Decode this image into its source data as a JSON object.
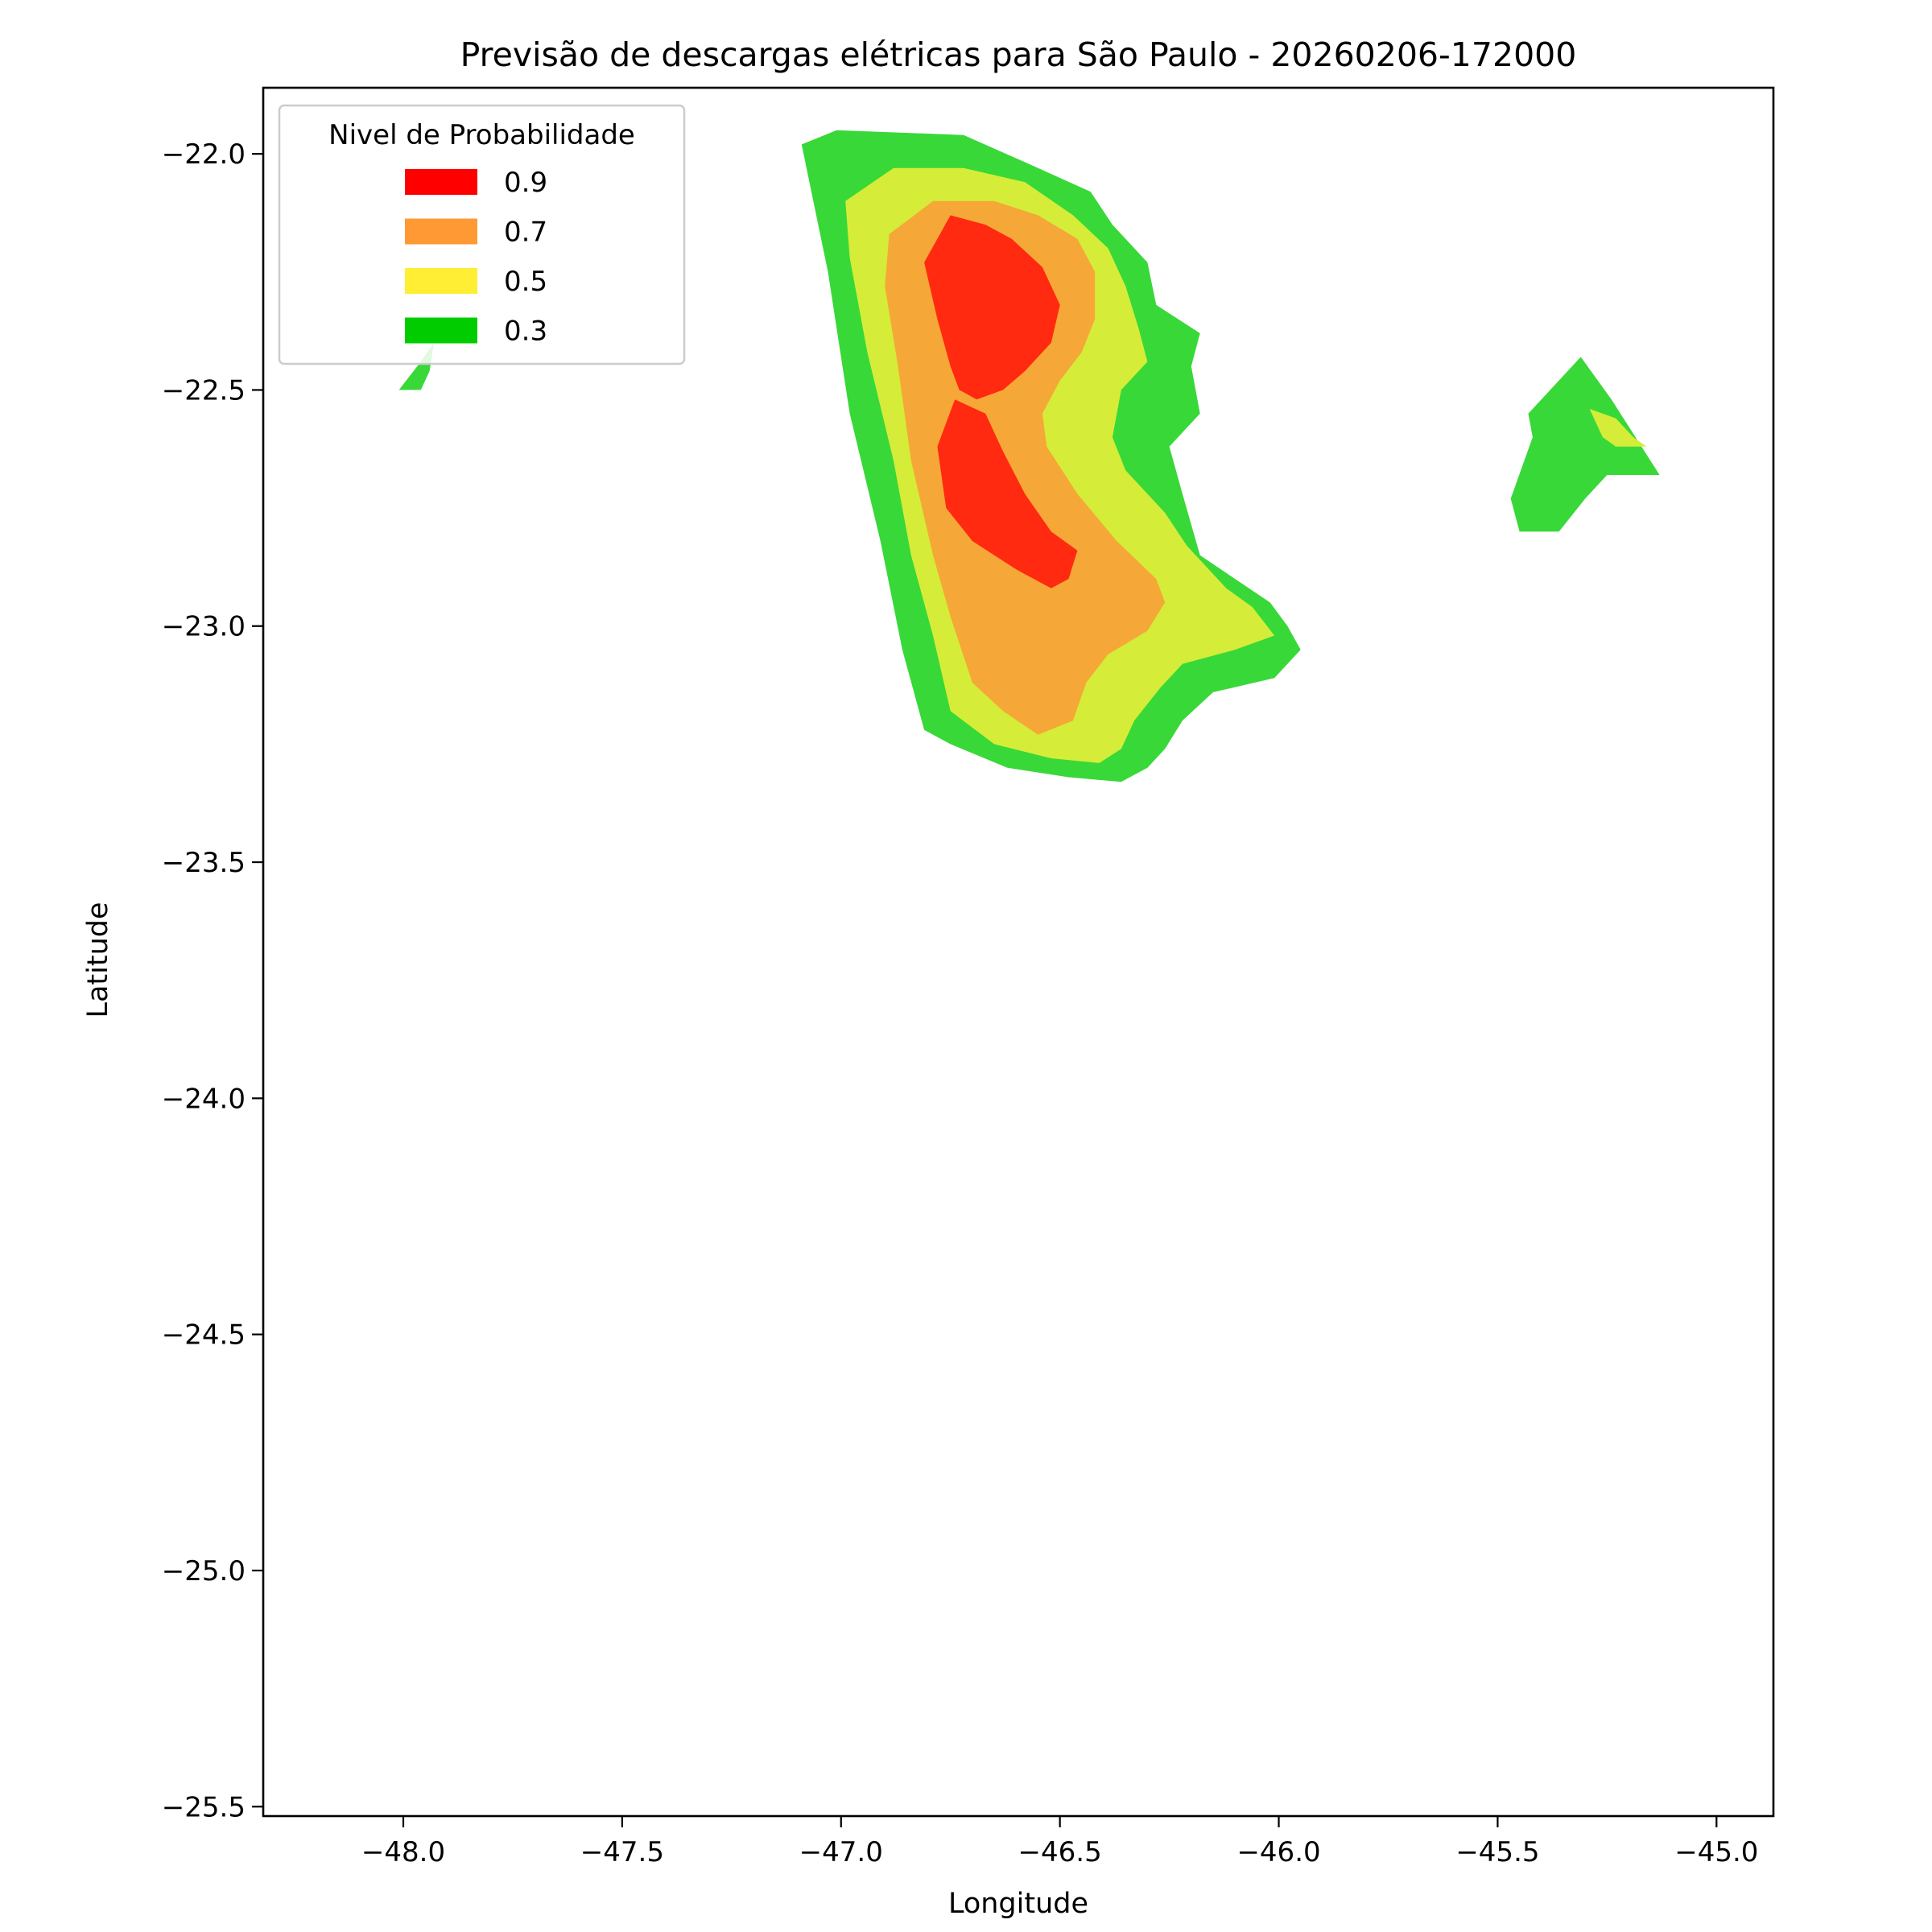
{
  "chart_data": {
    "type": "contour",
    "title": "Previsão de descargas elétricas para São Paulo - 20260206-172000",
    "xlabel": "Longitude",
    "ylabel": "Latitude",
    "xlim": [
      -48.32,
      -44.87
    ],
    "ylim": [
      -25.52,
      -21.86
    ],
    "xticks": [
      -48.0,
      -47.5,
      -47.0,
      -46.5,
      -46.0,
      -45.5,
      -45.0
    ],
    "xtick_labels": [
      "−48.0",
      "−47.5",
      "−47.0",
      "−46.5",
      "−46.0",
      "−45.5",
      "−45.0"
    ],
    "yticks": [
      -22.0,
      -22.5,
      -23.0,
      -23.5,
      -24.0,
      -24.5,
      -25.0,
      -25.5
    ],
    "ytick_labels": [
      "−22.0",
      "−22.5",
      "−23.0",
      "−23.5",
      "−24.0",
      "−24.5",
      "−25.0",
      "−25.5"
    ],
    "grid": false,
    "legend": {
      "title": "Nivel de Probabilidade",
      "placement": "upper-left",
      "entries": [
        {
          "label": "0.9",
          "color": "#ff0000"
        },
        {
          "label": "0.7",
          "color": "#ff9933"
        },
        {
          "label": "0.5",
          "color": "#ffee33"
        },
        {
          "label": "0.3",
          "color": "#00cc00"
        }
      ]
    },
    "regions": [
      {
        "level": "0.3",
        "color": "#38d838",
        "points": [
          [
            -47.09,
            -21.98
          ],
          [
            -47.01,
            -21.95
          ],
          [
            -46.72,
            -21.96
          ],
          [
            -46.55,
            -22.03
          ],
          [
            -46.43,
            -22.08
          ],
          [
            -46.38,
            -22.15
          ],
          [
            -46.3,
            -22.23
          ],
          [
            -46.28,
            -22.32
          ],
          [
            -46.18,
            -22.38
          ],
          [
            -46.2,
            -22.45
          ],
          [
            -46.18,
            -22.55
          ],
          [
            -46.25,
            -22.62
          ],
          [
            -46.22,
            -22.72
          ],
          [
            -46.18,
            -22.85
          ],
          [
            -46.1,
            -22.9
          ],
          [
            -46.02,
            -22.95
          ],
          [
            -45.98,
            -23.0
          ],
          [
            -45.95,
            -23.05
          ],
          [
            -46.01,
            -23.11
          ],
          [
            -46.15,
            -23.14
          ],
          [
            -46.22,
            -23.2
          ],
          [
            -46.26,
            -23.26
          ],
          [
            -46.3,
            -23.3
          ],
          [
            -46.36,
            -23.33
          ],
          [
            -46.48,
            -23.32
          ],
          [
            -46.62,
            -23.3
          ],
          [
            -46.75,
            -23.25
          ],
          [
            -46.81,
            -23.22
          ],
          [
            -46.86,
            -23.05
          ],
          [
            -46.91,
            -22.82
          ],
          [
            -46.98,
            -22.55
          ],
          [
            -47.03,
            -22.25
          ]
        ]
      },
      {
        "level": "0.3",
        "color": "#38d838",
        "points": [
          [
            -45.43,
            -22.55
          ],
          [
            -45.31,
            -22.43
          ],
          [
            -45.24,
            -22.52
          ],
          [
            -45.13,
            -22.68
          ],
          [
            -45.25,
            -22.68
          ],
          [
            -45.3,
            -22.73
          ],
          [
            -45.36,
            -22.8
          ],
          [
            -45.45,
            -22.8
          ],
          [
            -45.47,
            -22.73
          ],
          [
            -45.42,
            -22.6
          ]
        ]
      },
      {
        "level": "0.3",
        "color": "#38d838",
        "points": [
          [
            -48.01,
            -22.5
          ],
          [
            -47.96,
            -22.44
          ],
          [
            -47.93,
            -22.4
          ],
          [
            -47.94,
            -22.46
          ],
          [
            -47.96,
            -22.5
          ]
        ]
      },
      {
        "level": "0.5",
        "color": "#d5ed38",
        "points": [
          [
            -46.99,
            -22.1
          ],
          [
            -46.88,
            -22.03
          ],
          [
            -46.72,
            -22.03
          ],
          [
            -46.58,
            -22.06
          ],
          [
            -46.47,
            -22.13
          ],
          [
            -46.39,
            -22.2
          ],
          [
            -46.35,
            -22.28
          ],
          [
            -46.32,
            -22.37
          ],
          [
            -46.3,
            -22.44
          ],
          [
            -46.36,
            -22.5
          ],
          [
            -46.38,
            -22.6
          ],
          [
            -46.35,
            -22.67
          ],
          [
            -46.26,
            -22.76
          ],
          [
            -46.21,
            -22.83
          ],
          [
            -46.12,
            -22.92
          ],
          [
            -46.06,
            -22.96
          ],
          [
            -46.01,
            -23.02
          ],
          [
            -46.1,
            -23.05
          ],
          [
            -46.22,
            -23.08
          ],
          [
            -46.27,
            -23.13
          ],
          [
            -46.33,
            -23.2
          ],
          [
            -46.36,
            -23.26
          ],
          [
            -46.41,
            -23.29
          ],
          [
            -46.52,
            -23.28
          ],
          [
            -46.65,
            -23.25
          ],
          [
            -46.75,
            -23.18
          ],
          [
            -46.79,
            -23.02
          ],
          [
            -46.84,
            -22.85
          ],
          [
            -46.88,
            -22.65
          ],
          [
            -46.94,
            -22.42
          ],
          [
            -46.98,
            -22.22
          ]
        ]
      },
      {
        "level": "0.5",
        "color": "#d5ed38",
        "points": [
          [
            -45.29,
            -22.54
          ],
          [
            -45.23,
            -22.56
          ],
          [
            -45.19,
            -22.6
          ],
          [
            -45.16,
            -22.62
          ],
          [
            -45.23,
            -22.62
          ],
          [
            -45.26,
            -22.6
          ]
        ]
      },
      {
        "level": "0.7",
        "color": "#f5a837",
        "points": [
          [
            -46.89,
            -22.17
          ],
          [
            -46.79,
            -22.1
          ],
          [
            -46.65,
            -22.1
          ],
          [
            -46.55,
            -22.13
          ],
          [
            -46.46,
            -22.18
          ],
          [
            -46.42,
            -22.25
          ],
          [
            -46.42,
            -22.35
          ],
          [
            -46.45,
            -22.42
          ],
          [
            -46.5,
            -22.48
          ],
          [
            -46.54,
            -22.55
          ],
          [
            -46.53,
            -22.62
          ],
          [
            -46.46,
            -22.72
          ],
          [
            -46.37,
            -22.82
          ],
          [
            -46.28,
            -22.9
          ],
          [
            -46.26,
            -22.95
          ],
          [
            -46.3,
            -23.01
          ],
          [
            -46.39,
            -23.06
          ],
          [
            -46.44,
            -23.12
          ],
          [
            -46.47,
            -23.2
          ],
          [
            -46.55,
            -23.23
          ],
          [
            -46.63,
            -23.18
          ],
          [
            -46.7,
            -23.12
          ],
          [
            -46.75,
            -22.98
          ],
          [
            -46.79,
            -22.85
          ],
          [
            -46.84,
            -22.65
          ],
          [
            -46.87,
            -22.45
          ],
          [
            -46.9,
            -22.28
          ]
        ]
      },
      {
        "level": "0.9",
        "color": "#ff2a0f",
        "points": [
          [
            -46.81,
            -22.23
          ],
          [
            -46.75,
            -22.13
          ],
          [
            -46.67,
            -22.15
          ],
          [
            -46.61,
            -22.18
          ],
          [
            -46.54,
            -22.24
          ],
          [
            -46.5,
            -22.32
          ],
          [
            -46.52,
            -22.4
          ],
          [
            -46.58,
            -22.46
          ],
          [
            -46.63,
            -22.5
          ],
          [
            -46.69,
            -22.52
          ],
          [
            -46.73,
            -22.5
          ],
          [
            -46.75,
            -22.45
          ],
          [
            -46.78,
            -22.35
          ]
        ]
      },
      {
        "level": "0.9",
        "color": "#ff2a0f",
        "points": [
          [
            -46.74,
            -22.52
          ],
          [
            -46.67,
            -22.55
          ],
          [
            -46.63,
            -22.63
          ],
          [
            -46.58,
            -22.72
          ],
          [
            -46.52,
            -22.8
          ],
          [
            -46.46,
            -22.84
          ],
          [
            -46.48,
            -22.9
          ],
          [
            -46.52,
            -22.92
          ],
          [
            -46.6,
            -22.88
          ],
          [
            -46.7,
            -22.82
          ],
          [
            -46.76,
            -22.75
          ],
          [
            -46.78,
            -22.62
          ]
        ]
      }
    ]
  }
}
